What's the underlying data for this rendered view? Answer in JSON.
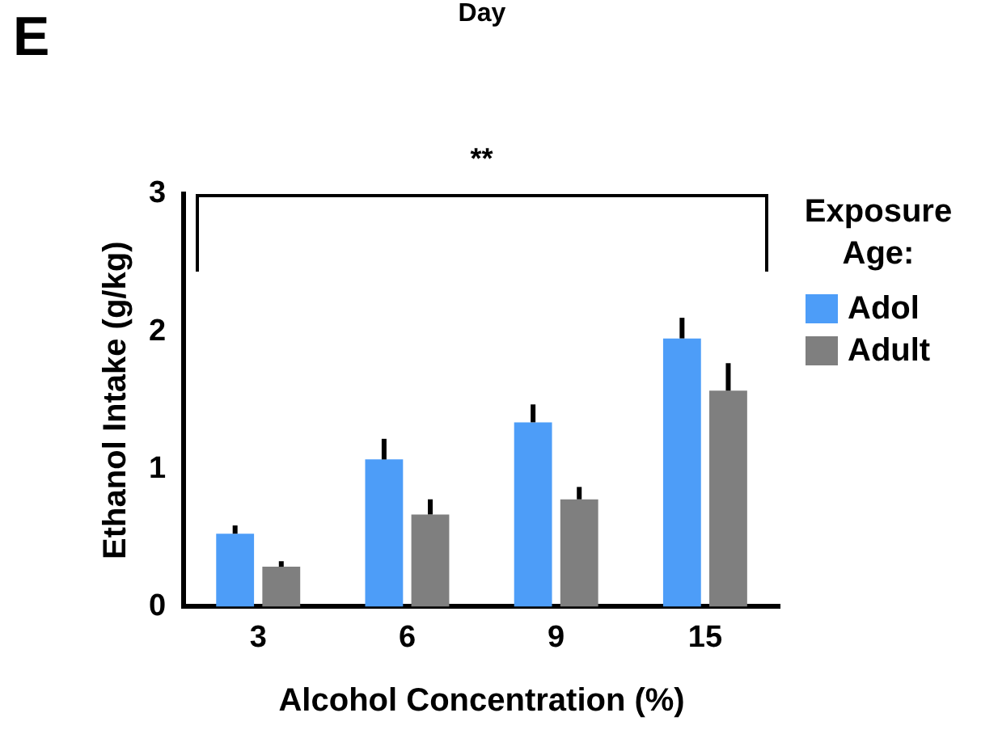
{
  "chart_data": {
    "type": "bar",
    "xlabel": "Alcohol Concentration (%)",
    "ylabel": "Ethanol Intake (g/kg)",
    "legend_title": "Exposure Age:",
    "categories": [
      "3",
      "6",
      "9",
      "15"
    ],
    "series": [
      {
        "name": "Adol",
        "color": "#4d9df8",
        "values": [
          0.53,
          1.07,
          1.34,
          1.95
        ],
        "errors": [
          [
            0.53,
            0.59
          ],
          [
            1.07,
            1.22
          ],
          [
            1.34,
            1.47
          ],
          [
            1.95,
            2.1
          ]
        ]
      },
      {
        "name": "Adult",
        "color": "#7f7f7f",
        "values": [
          0.29,
          0.67,
          0.78,
          1.57
        ],
        "errors": [
          [
            0.29,
            0.33
          ],
          [
            0.67,
            0.78
          ],
          [
            0.78,
            0.87
          ],
          [
            1.57,
            1.77
          ]
        ]
      }
    ],
    "ylim": [
      0,
      3
    ],
    "yticks": [
      0,
      1,
      2,
      3
    ],
    "grid": false,
    "legend": "right",
    "annotations": [
      "E",
      "Day",
      "**"
    ]
  }
}
